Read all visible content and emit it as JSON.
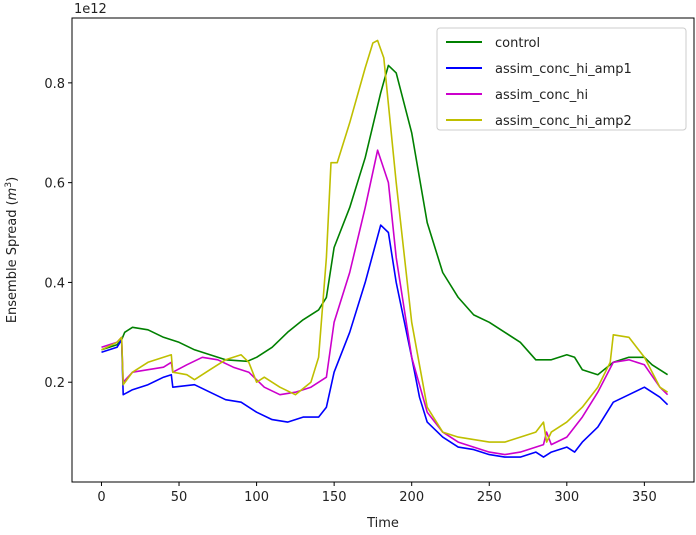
{
  "chart_data": {
    "type": "line",
    "title": "",
    "xlabel": "Time",
    "ylabel": "Ensemble Spread (m³)",
    "ylabel_main": "Ensemble Spread (",
    "ylabel_unit": "m",
    "ylabel_exp": "3",
    "ylabel_close": ")",
    "y_offset_label": "1e12",
    "xlim": [
      -19,
      382
    ],
    "ylim": [
      0.0,
      0.93
    ],
    "xticks": [
      0,
      50,
      100,
      150,
      200,
      250,
      300,
      350
    ],
    "yticks": [
      0.2,
      0.4,
      0.6,
      0.8
    ],
    "ytick_labels": [
      "0.2",
      "0.4",
      "0.6",
      "0.8"
    ],
    "grid": false,
    "legend_position": "top-right",
    "series": [
      {
        "name": "control",
        "color": "#008000",
        "points": [
          [
            0,
            0.265
          ],
          [
            10,
            0.275
          ],
          [
            13,
            0.285
          ],
          [
            15,
            0.3
          ],
          [
            20,
            0.31
          ],
          [
            30,
            0.305
          ],
          [
            40,
            0.29
          ],
          [
            50,
            0.28
          ],
          [
            60,
            0.265
          ],
          [
            70,
            0.255
          ],
          [
            80,
            0.245
          ],
          [
            94,
            0.242
          ],
          [
            100,
            0.25
          ],
          [
            110,
            0.27
          ],
          [
            120,
            0.3
          ],
          [
            130,
            0.325
          ],
          [
            140,
            0.345
          ],
          [
            145,
            0.37
          ],
          [
            150,
            0.47
          ],
          [
            160,
            0.55
          ],
          [
            170,
            0.65
          ],
          [
            180,
            0.78
          ],
          [
            185,
            0.835
          ],
          [
            190,
            0.82
          ],
          [
            200,
            0.7
          ],
          [
            210,
            0.52
          ],
          [
            220,
            0.42
          ],
          [
            230,
            0.37
          ],
          [
            240,
            0.335
          ],
          [
            250,
            0.32
          ],
          [
            260,
            0.3
          ],
          [
            270,
            0.28
          ],
          [
            280,
            0.245
          ],
          [
            290,
            0.245
          ],
          [
            300,
            0.255
          ],
          [
            305,
            0.25
          ],
          [
            310,
            0.225
          ],
          [
            320,
            0.215
          ],
          [
            330,
            0.24
          ],
          [
            340,
            0.25
          ],
          [
            350,
            0.25
          ],
          [
            355,
            0.235
          ],
          [
            365,
            0.215
          ]
        ]
      },
      {
        "name": "assim_conc_hi_amp1",
        "color": "#0000ff",
        "points": [
          [
            0,
            0.26
          ],
          [
            10,
            0.27
          ],
          [
            13,
            0.285
          ],
          [
            14,
            0.175
          ],
          [
            20,
            0.185
          ],
          [
            30,
            0.195
          ],
          [
            40,
            0.21
          ],
          [
            45,
            0.215
          ],
          [
            46,
            0.19
          ],
          [
            60,
            0.195
          ],
          [
            70,
            0.18
          ],
          [
            80,
            0.165
          ],
          [
            90,
            0.16
          ],
          [
            100,
            0.14
          ],
          [
            110,
            0.125
          ],
          [
            120,
            0.12
          ],
          [
            130,
            0.13
          ],
          [
            140,
            0.13
          ],
          [
            145,
            0.15
          ],
          [
            150,
            0.22
          ],
          [
            160,
            0.3
          ],
          [
            170,
            0.4
          ],
          [
            180,
            0.515
          ],
          [
            185,
            0.5
          ],
          [
            190,
            0.4
          ],
          [
            200,
            0.25
          ],
          [
            205,
            0.17
          ],
          [
            210,
            0.12
          ],
          [
            220,
            0.09
          ],
          [
            230,
            0.07
          ],
          [
            240,
            0.065
          ],
          [
            250,
            0.055
          ],
          [
            260,
            0.05
          ],
          [
            270,
            0.05
          ],
          [
            280,
            0.06
          ],
          [
            285,
            0.05
          ],
          [
            290,
            0.06
          ],
          [
            300,
            0.07
          ],
          [
            305,
            0.06
          ],
          [
            310,
            0.08
          ],
          [
            320,
            0.11
          ],
          [
            330,
            0.16
          ],
          [
            340,
            0.175
          ],
          [
            350,
            0.19
          ],
          [
            360,
            0.17
          ],
          [
            365,
            0.155
          ]
        ]
      },
      {
        "name": "assim_conc_hi",
        "color": "#cc00cc",
        "points": [
          [
            0,
            0.27
          ],
          [
            10,
            0.28
          ],
          [
            13,
            0.29
          ],
          [
            14,
            0.2
          ],
          [
            20,
            0.22
          ],
          [
            30,
            0.225
          ],
          [
            40,
            0.23
          ],
          [
            45,
            0.24
          ],
          [
            46,
            0.22
          ],
          [
            55,
            0.235
          ],
          [
            65,
            0.25
          ],
          [
            75,
            0.245
          ],
          [
            85,
            0.23
          ],
          [
            95,
            0.22
          ],
          [
            105,
            0.19
          ],
          [
            115,
            0.175
          ],
          [
            125,
            0.18
          ],
          [
            135,
            0.19
          ],
          [
            145,
            0.21
          ],
          [
            150,
            0.32
          ],
          [
            160,
            0.42
          ],
          [
            170,
            0.55
          ],
          [
            178,
            0.665
          ],
          [
            185,
            0.6
          ],
          [
            190,
            0.45
          ],
          [
            200,
            0.25
          ],
          [
            210,
            0.14
          ],
          [
            220,
            0.1
          ],
          [
            230,
            0.08
          ],
          [
            240,
            0.07
          ],
          [
            250,
            0.06
          ],
          [
            260,
            0.055
          ],
          [
            270,
            0.06
          ],
          [
            280,
            0.07
          ],
          [
            285,
            0.075
          ],
          [
            287,
            0.1
          ],
          [
            290,
            0.075
          ],
          [
            300,
            0.09
          ],
          [
            310,
            0.13
          ],
          [
            320,
            0.18
          ],
          [
            330,
            0.24
          ],
          [
            340,
            0.245
          ],
          [
            350,
            0.235
          ],
          [
            360,
            0.19
          ],
          [
            365,
            0.175
          ]
        ]
      },
      {
        "name": "assim_conc_hi_amp2",
        "color": "#bfbf00",
        "points": [
          [
            0,
            0.265
          ],
          [
            10,
            0.28
          ],
          [
            13,
            0.29
          ],
          [
            14,
            0.195
          ],
          [
            20,
            0.22
          ],
          [
            30,
            0.24
          ],
          [
            40,
            0.25
          ],
          [
            45,
            0.255
          ],
          [
            46,
            0.22
          ],
          [
            55,
            0.215
          ],
          [
            60,
            0.205
          ],
          [
            70,
            0.225
          ],
          [
            80,
            0.245
          ],
          [
            90,
            0.255
          ],
          [
            95,
            0.24
          ],
          [
            100,
            0.2
          ],
          [
            105,
            0.21
          ],
          [
            115,
            0.19
          ],
          [
            125,
            0.175
          ],
          [
            135,
            0.2
          ],
          [
            140,
            0.25
          ],
          [
            145,
            0.45
          ],
          [
            148,
            0.64
          ],
          [
            152,
            0.64
          ],
          [
            160,
            0.72
          ],
          [
            170,
            0.83
          ],
          [
            175,
            0.88
          ],
          [
            178,
            0.885
          ],
          [
            182,
            0.85
          ],
          [
            190,
            0.6
          ],
          [
            200,
            0.32
          ],
          [
            210,
            0.15
          ],
          [
            220,
            0.1
          ],
          [
            230,
            0.09
          ],
          [
            240,
            0.085
          ],
          [
            250,
            0.08
          ],
          [
            260,
            0.08
          ],
          [
            270,
            0.09
          ],
          [
            280,
            0.1
          ],
          [
            285,
            0.12
          ],
          [
            287,
            0.08
          ],
          [
            290,
            0.1
          ],
          [
            300,
            0.12
          ],
          [
            310,
            0.15
          ],
          [
            320,
            0.19
          ],
          [
            328,
            0.24
          ],
          [
            330,
            0.295
          ],
          [
            340,
            0.29
          ],
          [
            350,
            0.25
          ],
          [
            360,
            0.19
          ],
          [
            365,
            0.18
          ]
        ]
      }
    ]
  }
}
